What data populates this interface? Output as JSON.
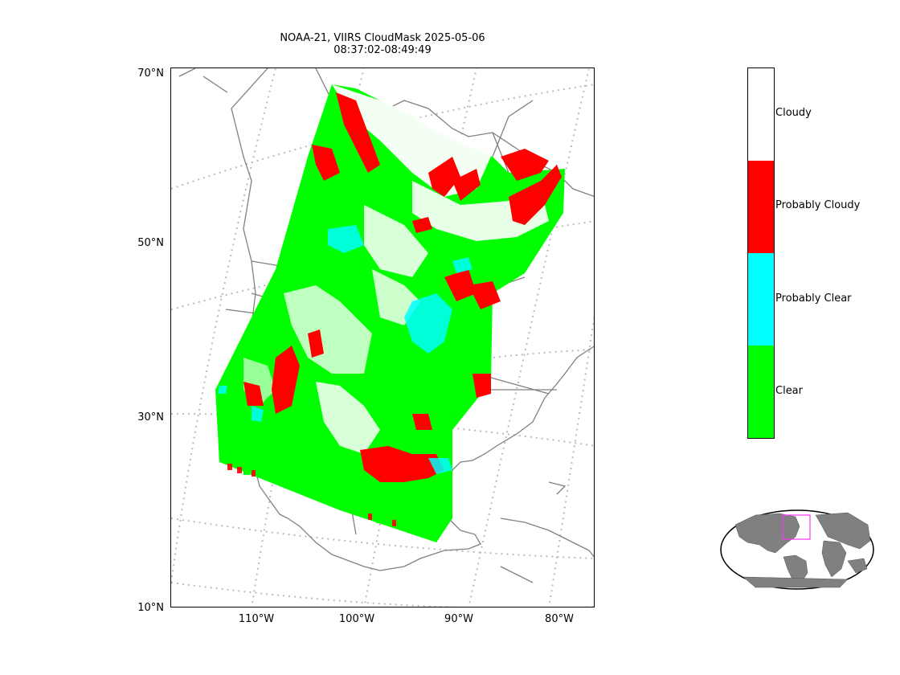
{
  "title_line1": "NOAA-21, VIIRS CloudMask 2025-05-06",
  "title_line2": "08:37:02-08:49:49",
  "lat_labels": [
    "70°N",
    "50°N",
    "30°N",
    "10°N"
  ],
  "lon_labels": [
    "110°W",
    "100°W",
    "90°W",
    "80°W"
  ],
  "colorbar": [
    {
      "label": "Cloudy",
      "color": "#ffffff"
    },
    {
      "label": "Probably Cloudy",
      "color": "#ff0000"
    },
    {
      "label": "Probably Clear",
      "color": "#00ffff"
    },
    {
      "label": "Clear",
      "color": "#00ff00"
    }
  ],
  "colors": {
    "land_outline": "#808080",
    "graticule": "#bbbbbb",
    "inset_land": "#808080",
    "inset_box": "#ff33ff"
  }
}
